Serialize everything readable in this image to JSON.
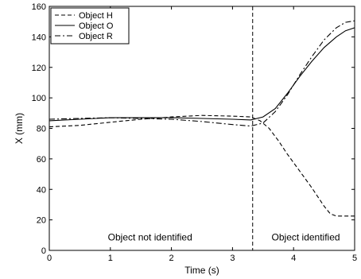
{
  "chart_data": {
    "type": "line",
    "title": "",
    "xlabel": "Time (s)",
    "ylabel": "X (mm)",
    "xlim": [
      0,
      5
    ],
    "ylim": [
      0,
      160
    ],
    "x_ticks": [
      0,
      1,
      2,
      3,
      4,
      5
    ],
    "y_ticks": [
      0,
      20,
      40,
      60,
      80,
      100,
      120,
      140,
      160
    ],
    "grid": false,
    "legend_position": "top-left",
    "series": [
      {
        "name": "Object H",
        "style": "dashed",
        "x": [
          0,
          0.5,
          1.0,
          1.5,
          2.0,
          2.5,
          3.0,
          3.3,
          3.45,
          3.6,
          3.75,
          3.9,
          4.1,
          4.3,
          4.5,
          4.6,
          4.7,
          4.8,
          5.0
        ],
        "y": [
          81,
          82,
          84,
          86,
          87.5,
          88.5,
          88,
          87.5,
          85,
          80,
          72,
          63,
          52,
          41,
          29,
          24,
          22.5,
          22.5,
          22.5
        ]
      },
      {
        "name": "Object O",
        "style": "solid",
        "x": [
          0,
          0.5,
          1.0,
          1.5,
          2.0,
          2.5,
          3.0,
          3.3,
          3.5,
          3.7,
          3.9,
          4.1,
          4.3,
          4.5,
          4.7,
          4.85,
          5.0
        ],
        "y": [
          85,
          86,
          87,
          87,
          87,
          86.5,
          86,
          85.5,
          87.5,
          93,
          103,
          114,
          124,
          133,
          140,
          144,
          146
        ]
      },
      {
        "name": "Object R",
        "style": "dashdot",
        "x": [
          0,
          0.5,
          1.0,
          1.5,
          2.0,
          2.5,
          3.0,
          3.3,
          3.5,
          3.7,
          3.9,
          4.1,
          4.3,
          4.5,
          4.7,
          4.85,
          5.0
        ],
        "y": [
          86,
          86.5,
          87,
          86.5,
          86,
          84.5,
          82.5,
          81.5,
          83.5,
          91,
          102,
          115,
          127,
          138,
          146,
          149.5,
          150.5
        ]
      }
    ],
    "vertical_line": {
      "x": 3.33,
      "style": "dashed"
    },
    "annotations": [
      {
        "text": "Object not identified",
        "x": 1.65,
        "y": 5
      },
      {
        "text": "Object identified",
        "x": 4.2,
        "y": 5
      }
    ]
  }
}
